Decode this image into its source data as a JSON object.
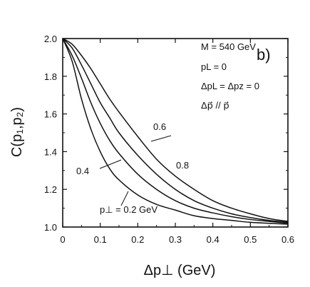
{
  "chart_data": {
    "type": "line",
    "xlabel": "Δp⊥ (GeV)",
    "ylabel": "C(p₁,p₂)",
    "xlim": [
      0,
      0.6
    ],
    "ylim": [
      1.0,
      2.0
    ],
    "x_ticks": [
      "0",
      "0.1",
      "0.2",
      "0.3",
      "0.4",
      "0.5",
      "0.6"
    ],
    "y_ticks": [
      "1.0",
      "1.2",
      "1.4",
      "1.6",
      "1.8",
      "2.0"
    ],
    "panel_label": "b)",
    "annotations": [
      "M = 540 GeV",
      "pL = 0",
      "ΔpL = Δpz = 0",
      "Δp⃗ // p⃗"
    ],
    "grid": false,
    "series": [
      {
        "name": "p⊥ = 0.2 GeV",
        "x": [
          0,
          0.025,
          0.05,
          0.075,
          0.1,
          0.125,
          0.15,
          0.2,
          0.25,
          0.3,
          0.35,
          0.4,
          0.45,
          0.5,
          0.55,
          0.6
        ],
        "y": [
          2.0,
          1.88,
          1.68,
          1.52,
          1.4,
          1.31,
          1.25,
          1.17,
          1.12,
          1.09,
          1.06,
          1.045,
          1.035,
          1.025,
          1.02,
          1.015
        ]
      },
      {
        "name": "0.4",
        "x": [
          0,
          0.025,
          0.05,
          0.075,
          0.1,
          0.125,
          0.15,
          0.2,
          0.25,
          0.3,
          0.35,
          0.4,
          0.45,
          0.5,
          0.55,
          0.6
        ],
        "y": [
          2.0,
          1.91,
          1.79,
          1.66,
          1.55,
          1.46,
          1.39,
          1.28,
          1.2,
          1.14,
          1.1,
          1.075,
          1.055,
          1.04,
          1.03,
          1.02
        ]
      },
      {
        "name": "0.6",
        "x": [
          0,
          0.025,
          0.05,
          0.075,
          0.1,
          0.125,
          0.15,
          0.2,
          0.25,
          0.3,
          0.35,
          0.4,
          0.45,
          0.5,
          0.55,
          0.6
        ],
        "y": [
          2.0,
          1.95,
          1.86,
          1.76,
          1.66,
          1.58,
          1.5,
          1.38,
          1.28,
          1.2,
          1.14,
          1.1,
          1.07,
          1.05,
          1.035,
          1.025
        ]
      },
      {
        "name": "0.8",
        "x": [
          0,
          0.025,
          0.05,
          0.075,
          0.1,
          0.125,
          0.15,
          0.2,
          0.25,
          0.3,
          0.35,
          0.4,
          0.45,
          0.5,
          0.55,
          0.6
        ],
        "y": [
          2.0,
          1.97,
          1.91,
          1.84,
          1.76,
          1.68,
          1.61,
          1.48,
          1.36,
          1.27,
          1.2,
          1.14,
          1.1,
          1.07,
          1.045,
          1.03
        ]
      }
    ],
    "series_labels": [
      "p⊥ = 0.2 GeV",
      "0.4",
      "0.6",
      "0.8"
    ]
  }
}
